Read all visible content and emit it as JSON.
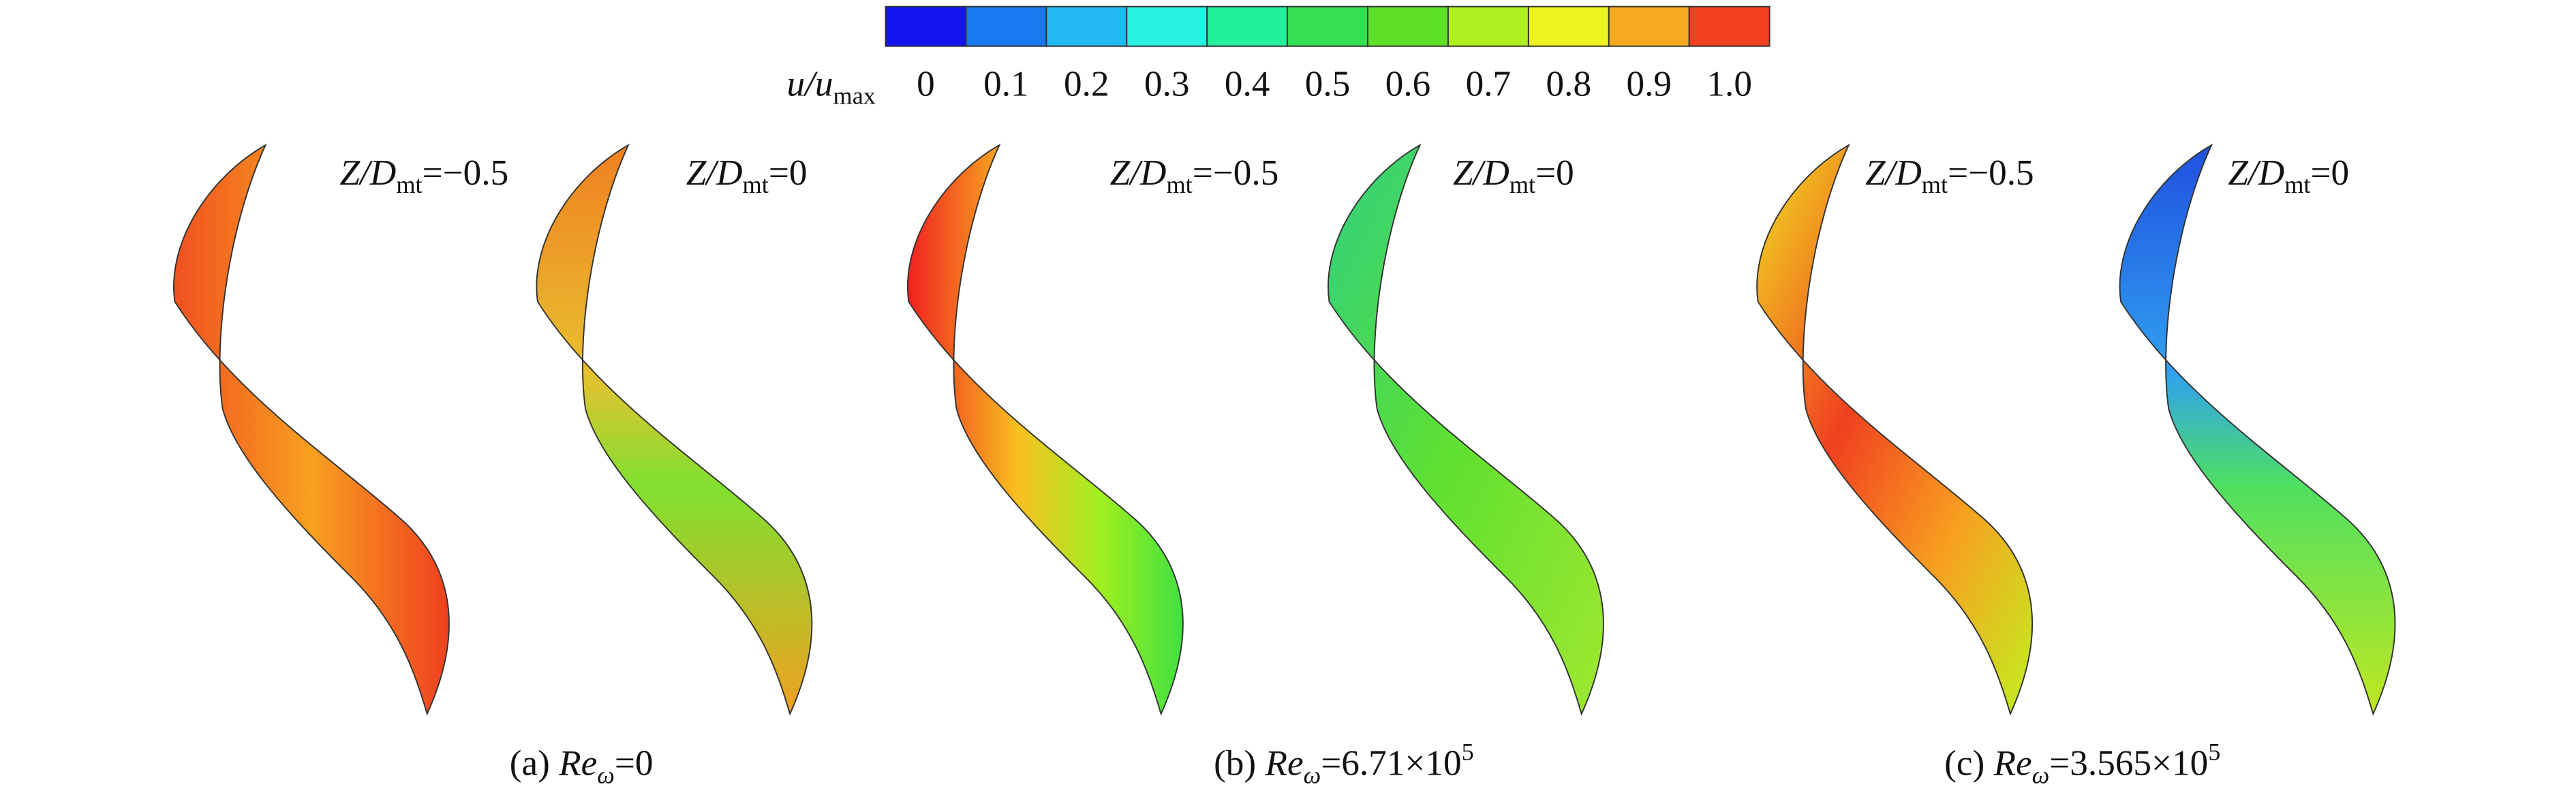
{
  "colorbar": {
    "label": {
      "text": "u/u",
      "sub": "max"
    },
    "levels": [
      {
        "color": "#1414ee",
        "label": "0"
      },
      {
        "color": "#1a78f0",
        "label": "0.1"
      },
      {
        "color": "#22b8f2",
        "label": "0.2"
      },
      {
        "color": "#2af2e2",
        "label": "0.3"
      },
      {
        "color": "#22f09a",
        "label": "0.4"
      },
      {
        "color": "#34e052",
        "label": "0.5"
      },
      {
        "color": "#5ee028",
        "label": "0.6"
      },
      {
        "color": "#aef020",
        "label": "0.7"
      },
      {
        "color": "#eef420",
        "label": "0.8"
      },
      {
        "color": "#f8aa20",
        "label": "0.9"
      },
      {
        "color": "#f04020",
        "label": "1.0"
      }
    ]
  },
  "panels": [
    {
      "label": {
        "var": "Z/D",
        "sub": "mt",
        "rest": "=−0.5"
      }
    },
    {
      "label": {
        "var": "Z/D",
        "sub": "mt",
        "rest": "=0"
      }
    },
    {
      "label": {
        "var": "Z/D",
        "sub": "mt",
        "rest": "=−0.5"
      }
    },
    {
      "label": {
        "var": "Z/D",
        "sub": "mt",
        "rest": "=0"
      }
    },
    {
      "label": {
        "var": "Z/D",
        "sub": "mt",
        "rest": "=−0.5"
      }
    },
    {
      "label": {
        "var": "Z/D",
        "sub": "mt",
        "rest": "=0"
      }
    }
  ],
  "captions": [
    {
      "prefix": "(a) ",
      "var": "Re",
      "sub": "ω",
      "rest": "=0"
    },
    {
      "prefix": "(b) ",
      "var": "Re",
      "sub": "ω",
      "rest": "=6.71×10",
      "sup": "5"
    },
    {
      "prefix": "(c) ",
      "var": "Re",
      "sub": "ω",
      "rest": "=3.565×10",
      "sup": "5"
    }
  ]
}
